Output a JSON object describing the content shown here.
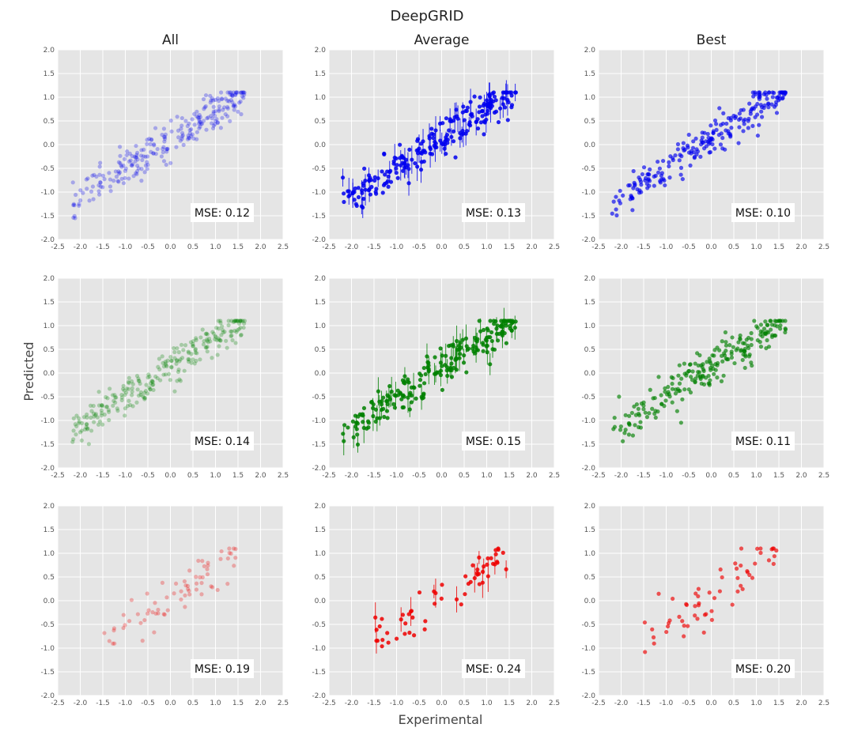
{
  "figure": {
    "title": "DeepGRID",
    "xlabel": "Experimental",
    "ylabel": "Predicted",
    "columns": [
      "All",
      "Average",
      "Best"
    ],
    "row_colors": [
      "#0000ee",
      "#008000",
      "#ee0000"
    ]
  },
  "chart_data": [
    {
      "type": "scatter",
      "row": 0,
      "col": 0,
      "column": "All",
      "color": "#0000ee",
      "mse_label": "MSE: 0.12",
      "xlim": [
        -2.5,
        2.5
      ],
      "ylim": [
        -2.0,
        2.0
      ],
      "grid": true,
      "xticks": [
        "-2.5",
        "-2.0",
        "-1.5",
        "-1.0",
        "-0.5",
        "0.0",
        "0.5",
        "1.0",
        "1.5",
        "2.0",
        "2.5"
      ],
      "yticks": [
        "-2.0",
        "-1.5",
        "-1.0",
        "-0.5",
        "0.0",
        "0.5",
        "1.0",
        "1.5",
        "2.0"
      ]
    },
    {
      "type": "scatter",
      "row": 0,
      "col": 1,
      "column": "Average",
      "color": "#0000ee",
      "mse_label": "MSE: 0.13",
      "xlim": [
        -2.5,
        2.5
      ],
      "ylim": [
        -2.0,
        2.0
      ],
      "grid": true,
      "xticks": [
        "-2.5",
        "-2.0",
        "-1.5",
        "-1.0",
        "-0.5",
        "0.0",
        "0.5",
        "1.0",
        "1.5",
        "2.0",
        "2.5"
      ],
      "yticks": [
        "-2.0",
        "-1.5",
        "-1.0",
        "-0.5",
        "0.0",
        "0.5",
        "1.0",
        "1.5",
        "2.0"
      ]
    },
    {
      "type": "scatter",
      "row": 0,
      "col": 2,
      "column": "Best",
      "color": "#0000ee",
      "mse_label": "MSE: 0.10",
      "xlim": [
        -2.5,
        2.5
      ],
      "ylim": [
        -2.0,
        2.0
      ],
      "grid": true,
      "xticks": [
        "-2.5",
        "-2.0",
        "-1.5",
        "-1.0",
        "-0.5",
        "0.0",
        "0.5",
        "1.0",
        "1.5",
        "2.0",
        "2.5"
      ],
      "yticks": [
        "-2.0",
        "-1.5",
        "-1.0",
        "-0.5",
        "0.0",
        "0.5",
        "1.0",
        "1.5",
        "2.0"
      ]
    },
    {
      "type": "scatter",
      "row": 1,
      "col": 0,
      "column": "All",
      "color": "#008000",
      "mse_label": "MSE: 0.14",
      "xlim": [
        -2.5,
        2.5
      ],
      "ylim": [
        -2.0,
        2.0
      ],
      "grid": true,
      "xticks": [
        "-2.5",
        "-2.0",
        "-1.5",
        "-1.0",
        "-0.5",
        "0.0",
        "0.5",
        "1.0",
        "1.5",
        "2.0",
        "2.5"
      ],
      "yticks": [
        "-2.0",
        "-1.5",
        "-1.0",
        "-0.5",
        "0.0",
        "0.5",
        "1.0",
        "1.5",
        "2.0"
      ]
    },
    {
      "type": "scatter",
      "row": 1,
      "col": 1,
      "column": "Average",
      "color": "#008000",
      "mse_label": "MSE: 0.15",
      "xlim": [
        -2.5,
        2.5
      ],
      "ylim": [
        -2.0,
        2.0
      ],
      "grid": true,
      "xticks": [
        "-2.5",
        "-2.0",
        "-1.5",
        "-1.0",
        "-0.5",
        "0.0",
        "0.5",
        "1.0",
        "1.5",
        "2.0",
        "2.5"
      ],
      "yticks": [
        "-2.0",
        "-1.5",
        "-1.0",
        "-0.5",
        "0.0",
        "0.5",
        "1.0",
        "1.5",
        "2.0"
      ]
    },
    {
      "type": "scatter",
      "row": 1,
      "col": 2,
      "column": "Best",
      "color": "#008000",
      "mse_label": "MSE: 0.11",
      "xlim": [
        -2.5,
        2.5
      ],
      "ylim": [
        -2.0,
        2.0
      ],
      "grid": true,
      "xticks": [
        "-2.5",
        "-2.0",
        "-1.5",
        "-1.0",
        "-0.5",
        "0.0",
        "0.5",
        "1.0",
        "1.5",
        "2.0",
        "2.5"
      ],
      "yticks": [
        "-2.0",
        "-1.5",
        "-1.0",
        "-0.5",
        "0.0",
        "0.5",
        "1.0",
        "1.5",
        "2.0"
      ]
    },
    {
      "type": "scatter",
      "row": 2,
      "col": 0,
      "column": "All",
      "color": "#ee0000",
      "mse_label": "MSE: 0.19",
      "xlim": [
        -2.5,
        2.5
      ],
      "ylim": [
        -2.0,
        2.0
      ],
      "grid": true,
      "xticks": [
        "-2.5",
        "-2.0",
        "-1.5",
        "-1.0",
        "-0.5",
        "0.0",
        "0.5",
        "1.0",
        "1.5",
        "2.0",
        "2.5"
      ],
      "yticks": [
        "-2.0",
        "-1.5",
        "-1.0",
        "-0.5",
        "0.0",
        "0.5",
        "1.0",
        "1.5",
        "2.0"
      ]
    },
    {
      "type": "scatter",
      "row": 2,
      "col": 1,
      "column": "Average",
      "color": "#ee0000",
      "mse_label": "MSE: 0.24",
      "xlim": [
        -2.5,
        2.5
      ],
      "ylim": [
        -2.0,
        2.0
      ],
      "grid": true,
      "xticks": [
        "-2.5",
        "-2.0",
        "-1.5",
        "-1.0",
        "-0.5",
        "0.0",
        "0.5",
        "1.0",
        "1.5",
        "2.0",
        "2.5"
      ],
      "yticks": [
        "-2.0",
        "-1.5",
        "-1.0",
        "-0.5",
        "0.0",
        "0.5",
        "1.0",
        "1.5",
        "2.0"
      ]
    },
    {
      "type": "scatter",
      "row": 2,
      "col": 2,
      "column": "Best",
      "color": "#ee0000",
      "mse_label": "MSE: 0.20",
      "xlim": [
        -2.5,
        2.5
      ],
      "ylim": [
        -2.0,
        2.0
      ],
      "grid": true,
      "xticks": [
        "-2.5",
        "-2.0",
        "-1.5",
        "-1.0",
        "-0.5",
        "0.0",
        "0.5",
        "1.0",
        "1.5",
        "2.0",
        "2.5"
      ],
      "yticks": [
        "-2.0",
        "-1.5",
        "-1.0",
        "-0.5",
        "0.0",
        "0.5",
        "1.0",
        "1.5",
        "2.0"
      ]
    }
  ]
}
